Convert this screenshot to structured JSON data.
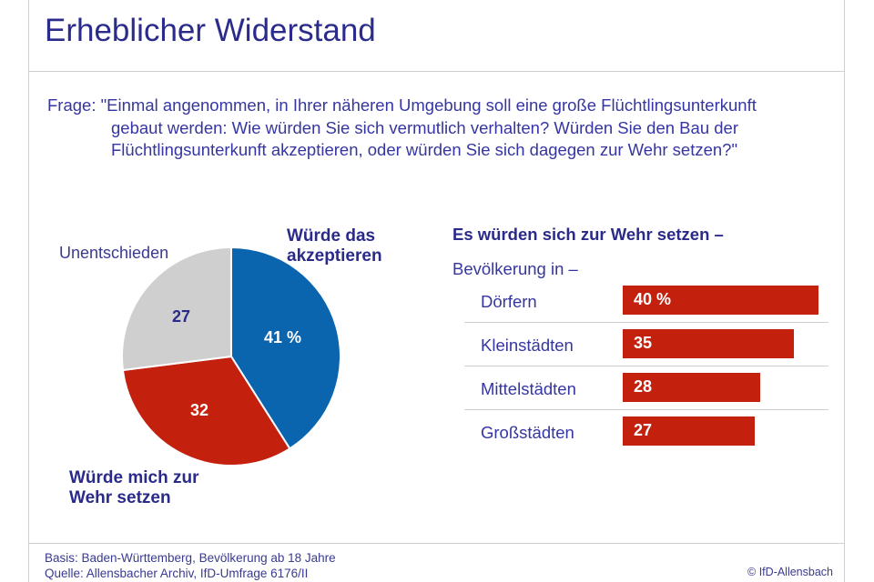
{
  "title": "Erheblicher Widerstand",
  "question": {
    "line1": "Frage: \"Einmal angenommen, in Ihrer näheren Umgebung soll eine große Flüchtlingsunterkunft",
    "line2": "gebaut werden: Wie würden Sie sich vermutlich verhalten? Würden Sie den Bau der",
    "line3": "Flüchtlingsunterkunft akzeptieren, oder würden Sie sich dagegen zur Wehr setzen?\""
  },
  "colors": {
    "blue": "#0a64ae",
    "red": "#c4200e",
    "grey": "#cfcfcf",
    "navy": "#2a2a8a"
  },
  "chart_data": [
    {
      "type": "pie",
      "slices": [
        {
          "label": "Würde das akzeptieren",
          "label_line1": "Würde das",
          "label_line2": "akzeptieren",
          "value": 41,
          "display": "41 %",
          "color": "#0a64ae"
        },
        {
          "label": "Würde mich zur Wehr setzen",
          "label_line1": "Würde mich zur",
          "label_line2": "Wehr setzen",
          "value": 32,
          "display": "32",
          "color": "#c4200e"
        },
        {
          "label": "Unentschieden",
          "value": 27,
          "display": "27",
          "color": "#cfcfcf"
        }
      ]
    },
    {
      "type": "bar",
      "title": "Es würden sich zur Wehr setzen –",
      "subtitle": "Bevölkerung in –",
      "categories": [
        "Dörfern",
        "Kleinstädten",
        "Mittelstädten",
        "Großstädten"
      ],
      "values": [
        40,
        35,
        28,
        27
      ],
      "display": [
        "40 %",
        "35",
        "28",
        "27"
      ],
      "color": "#c4200e"
    }
  ],
  "footer": {
    "basis": "Basis: Baden-Württemberg, Bevölkerung ab 18 Jahre",
    "source": "Quelle: Allensbacher Archiv, IfD-Umfrage 6176/II",
    "copyright": "© IfD-Allensbach"
  }
}
